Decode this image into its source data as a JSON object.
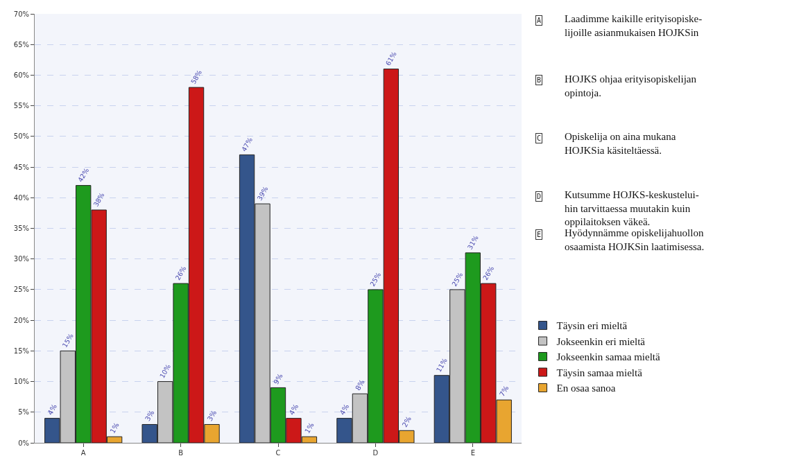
{
  "chart_data": {
    "type": "bar",
    "categories": [
      "A",
      "B",
      "C",
      "D",
      "E"
    ],
    "series": [
      {
        "name": "Täysin eri mieltä",
        "color": "#34558b",
        "values": [
          4,
          3,
          47,
          4,
          11
        ],
        "value_labels": [
          "4%",
          "3%",
          "47%",
          "4%",
          "11%"
        ]
      },
      {
        "name": "Jokseenkin eri mieltä",
        "color": "#c3c3c3",
        "values": [
          15,
          10,
          39,
          8,
          25
        ],
        "value_labels": [
          "15%",
          "10%",
          "39%",
          "8%",
          "25%"
        ]
      },
      {
        "name": "Jokseenkin samaa mieltä",
        "color": "#1e9a1e",
        "values": [
          42,
          26,
          9,
          25,
          31
        ],
        "value_labels": [
          "42%",
          "26%",
          "9%",
          "25%",
          "31%"
        ]
      },
      {
        "name": "Täysin samaa mieltä",
        "color": "#cc1818",
        "values": [
          38,
          58,
          4,
          61,
          26
        ],
        "value_labels": [
          "38%",
          "58%",
          "4%",
          "61%",
          "26%"
        ]
      },
      {
        "name": "En osaa sanoa",
        "color": "#e8a530",
        "values": [
          1,
          3,
          1,
          2,
          7
        ],
        "value_labels": [
          "1%",
          "3%",
          "1%",
          "2%",
          "7%"
        ]
      }
    ],
    "ylim": [
      0,
      70
    ],
    "yticks": [
      {
        "value": 0,
        "label": "0%"
      },
      {
        "value": 5,
        "label": "5%"
      },
      {
        "value": 10,
        "label": "10%"
      },
      {
        "value": 15,
        "label": "15%"
      },
      {
        "value": 20,
        "label": "20%"
      },
      {
        "value": 25,
        "label": "25%"
      },
      {
        "value": 30,
        "label": "30%"
      },
      {
        "value": 35,
        "label": "35%"
      },
      {
        "value": 40,
        "label": "40%"
      },
      {
        "value": 45,
        "label": "45%"
      },
      {
        "value": 50,
        "label": "50%"
      },
      {
        "value": 55,
        "label": "55%"
      },
      {
        "value": 60,
        "label": "60%"
      },
      {
        "value": 65,
        "label": "65%"
      },
      {
        "value": 70,
        "label": "70%"
      }
    ],
    "grid": "y",
    "legend": "right",
    "annotations": [
      "A",
      "Laadimme kaikille erityisopiske-\nlijoille asianmukaisen HOJKSin",
      "B",
      "HOJKS ohjaa erityisopiskelijan\nopintoja.",
      "C",
      "Opiskelija on aina mukana\nHOJKSia käsiteltäessä.",
      "D",
      "Kutsumme HOJKS-keskustelui-\nhin tarvittaessa muutakin kuin\noppilaitoksen väkeä.",
      "E",
      "Hyödynnämme opiskelijahuollon\nosaamista HOJKSin laatimisessa."
    ]
  }
}
